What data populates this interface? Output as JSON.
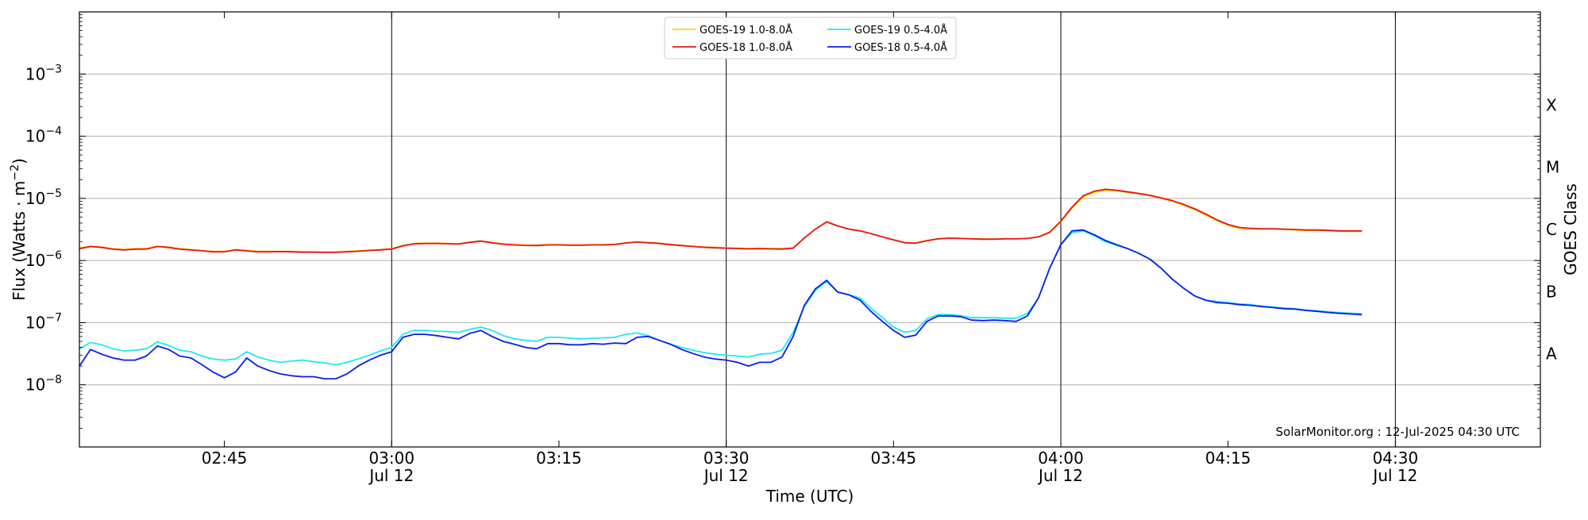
{
  "chart_data": {
    "type": "line",
    "xlabel": "Time (UTC)",
    "ylabel_main": "Flux (Watts · m",
    "ylabel_sup": "−2",
    "ylabel_close": ")",
    "y2label": "GOES Class",
    "y_scale": "log",
    "ylim": [
      1e-09,
      0.01
    ],
    "xlim": [
      "02:32",
      "04:43"
    ],
    "grid": "horizontal at decades",
    "legend_position": "top-center",
    "annotation": "SolarMonitor.org : 12-Jul-2025 04:30 UTC",
    "y_ticks": [
      {
        "value": 1e-08,
        "base": "10",
        "exp": "−8"
      },
      {
        "value": 1e-07,
        "base": "10",
        "exp": "−7"
      },
      {
        "value": 1e-06,
        "base": "10",
        "exp": "−6"
      },
      {
        "value": 1e-05,
        "base": "10",
        "exp": "−5"
      },
      {
        "value": 0.0001,
        "base": "10",
        "exp": "−4"
      },
      {
        "value": 0.001,
        "base": "10",
        "exp": "−3"
      }
    ],
    "x_ticks": [
      {
        "time": "02:45",
        "label": "02:45",
        "sub": ""
      },
      {
        "time": "03:00",
        "label": "03:00",
        "sub": "Jul 12"
      },
      {
        "time": "03:15",
        "label": "03:15",
        "sub": ""
      },
      {
        "time": "03:30",
        "label": "03:30",
        "sub": "Jul 12"
      },
      {
        "time": "03:45",
        "label": "03:45",
        "sub": ""
      },
      {
        "time": "04:00",
        "label": "04:00",
        "sub": "Jul 12"
      },
      {
        "time": "04:15",
        "label": "04:15",
        "sub": ""
      },
      {
        "time": "04:30",
        "label": "04:30",
        "sub": "Jul 12"
      }
    ],
    "vlines": [
      "03:00",
      "03:30",
      "04:00",
      "04:30"
    ],
    "goes_classes": [
      {
        "label": "A",
        "value": 3.16e-08
      },
      {
        "label": "B",
        "value": 3.16e-07
      },
      {
        "label": "C",
        "value": 3.16e-06
      },
      {
        "label": "M",
        "value": 3.16e-05
      },
      {
        "label": "X",
        "value": 0.000316
      }
    ],
    "x": [
      "02:32",
      "02:33",
      "02:34",
      "02:35",
      "02:36",
      "02:37",
      "02:38",
      "02:39",
      "02:40",
      "02:41",
      "02:42",
      "02:43",
      "02:44",
      "02:45",
      "02:46",
      "02:47",
      "02:48",
      "02:49",
      "02:50",
      "02:51",
      "02:52",
      "02:53",
      "02:54",
      "02:55",
      "02:56",
      "02:57",
      "02:58",
      "02:59",
      "03:00",
      "03:01",
      "03:02",
      "03:03",
      "03:04",
      "03:05",
      "03:06",
      "03:07",
      "03:08",
      "03:09",
      "03:10",
      "03:11",
      "03:12",
      "03:13",
      "03:14",
      "03:15",
      "03:16",
      "03:17",
      "03:18",
      "03:19",
      "03:20",
      "03:21",
      "03:22",
      "03:23",
      "03:24",
      "03:25",
      "03:26",
      "03:27",
      "03:28",
      "03:29",
      "03:30",
      "03:31",
      "03:32",
      "03:33",
      "03:34",
      "03:35",
      "03:36",
      "03:37",
      "03:38",
      "03:39",
      "03:40",
      "03:41",
      "03:42",
      "03:43",
      "03:44",
      "03:45",
      "03:46",
      "03:47",
      "03:48",
      "03:49",
      "03:50",
      "03:51",
      "03:52",
      "03:53",
      "03:54",
      "03:55",
      "03:56",
      "03:57",
      "03:58",
      "03:59",
      "04:00",
      "04:01",
      "04:02",
      "04:03",
      "04:04",
      "04:05",
      "04:06",
      "04:07",
      "04:08",
      "04:09",
      "04:10",
      "04:11",
      "04:12",
      "04:13",
      "04:14",
      "04:15",
      "04:16",
      "04:17",
      "04:18",
      "04:19",
      "04:20",
      "04:21",
      "04:22",
      "04:23",
      "04:24",
      "04:25",
      "04:26",
      "04:27"
    ],
    "series": [
      {
        "name": "GOES-19 1.0-8.0Å",
        "color": "#ffd700",
        "values": [
          1.6e-06,
          1.7e-06,
          1.65e-06,
          1.55e-06,
          1.5e-06,
          1.55e-06,
          1.55e-06,
          1.7e-06,
          1.65e-06,
          1.55e-06,
          1.5e-06,
          1.45e-06,
          1.4e-06,
          1.4e-06,
          1.5e-06,
          1.45e-06,
          1.4e-06,
          1.4e-06,
          1.4e-06,
          1.4e-06,
          1.38e-06,
          1.38e-06,
          1.37e-06,
          1.37e-06,
          1.4e-06,
          1.43e-06,
          1.47e-06,
          1.5e-06,
          1.55e-06,
          1.75e-06,
          1.88e-06,
          1.9e-06,
          1.9e-06,
          1.88e-06,
          1.86e-06,
          1.98e-06,
          2.05e-06,
          1.95e-06,
          1.85e-06,
          1.8e-06,
          1.77e-06,
          1.76e-06,
          1.8e-06,
          1.8e-06,
          1.78e-06,
          1.78e-06,
          1.8e-06,
          1.8e-06,
          1.83e-06,
          1.93e-06,
          2e-06,
          1.95e-06,
          1.9e-06,
          1.82e-06,
          1.76e-06,
          1.7e-06,
          1.65e-06,
          1.62e-06,
          1.6e-06,
          1.58e-06,
          1.56e-06,
          1.57e-06,
          1.56e-06,
          1.55e-06,
          1.6e-06,
          2.3e-06,
          3.2e-06,
          4.1e-06,
          3.6e-06,
          3.2e-06,
          3e-06,
          2.7e-06,
          2.4e-06,
          2.15e-06,
          1.95e-06,
          1.92e-06,
          2.1e-06,
          2.25e-06,
          2.3e-06,
          2.28e-06,
          2.25e-06,
          2.22e-06,
          2.22e-06,
          2.25e-06,
          2.25e-06,
          2.28e-06,
          2.4e-06,
          2.8e-06,
          4.2e-06,
          7e-06,
          1.05e-05,
          1.25e-05,
          1.35e-05,
          1.32e-05,
          1.25e-05,
          1.18e-05,
          1.1e-05,
          1e-05,
          9e-06,
          7.8e-06,
          6.6e-06,
          5.4e-06,
          4.4e-06,
          3.7e-06,
          3.3e-06,
          3.2e-06,
          3.2e-06,
          3.2e-06,
          3.15e-06,
          3.1e-06,
          3.05e-06,
          3.05e-06,
          3e-06,
          2.95e-06,
          2.95e-06,
          2.95e-06
        ]
      },
      {
        "name": "GOES-18 1.0-8.0Å",
        "color": "#e8141a",
        "values": [
          1.55e-06,
          1.68e-06,
          1.62e-06,
          1.52e-06,
          1.48e-06,
          1.52e-06,
          1.53e-06,
          1.68e-06,
          1.62e-06,
          1.52e-06,
          1.48e-06,
          1.43e-06,
          1.38e-06,
          1.38e-06,
          1.48e-06,
          1.43e-06,
          1.38e-06,
          1.38e-06,
          1.39e-06,
          1.38e-06,
          1.36e-06,
          1.36e-06,
          1.35e-06,
          1.35e-06,
          1.38e-06,
          1.41e-06,
          1.45e-06,
          1.48e-06,
          1.53e-06,
          1.72e-06,
          1.85e-06,
          1.88e-06,
          1.88e-06,
          1.86e-06,
          1.84e-06,
          1.96e-06,
          2.05e-06,
          1.93e-06,
          1.83e-06,
          1.78e-06,
          1.75e-06,
          1.74e-06,
          1.78e-06,
          1.78e-06,
          1.76e-06,
          1.76e-06,
          1.78e-06,
          1.78e-06,
          1.81e-06,
          1.91e-06,
          1.98e-06,
          1.93e-06,
          1.88e-06,
          1.8e-06,
          1.74e-06,
          1.68e-06,
          1.63e-06,
          1.6e-06,
          1.58e-06,
          1.56e-06,
          1.54e-06,
          1.55e-06,
          1.54e-06,
          1.53e-06,
          1.58e-06,
          2.3e-06,
          3.2e-06,
          4.2e-06,
          3.6e-06,
          3.2e-06,
          3e-06,
          2.7e-06,
          2.4e-06,
          2.15e-06,
          1.93e-06,
          1.9e-06,
          2.08e-06,
          2.23e-06,
          2.28e-06,
          2.26e-06,
          2.23e-06,
          2.2e-06,
          2.2e-06,
          2.23e-06,
          2.23e-06,
          2.26e-06,
          2.4e-06,
          2.85e-06,
          4.3e-06,
          7.2e-06,
          1.1e-05,
          1.3e-05,
          1.4e-05,
          1.35e-05,
          1.27e-05,
          1.2e-05,
          1.12e-05,
          1.02e-05,
          9.2e-06,
          8e-06,
          6.8e-06,
          5.6e-06,
          4.5e-06,
          3.8e-06,
          3.4e-06,
          3.3e-06,
          3.25e-06,
          3.25e-06,
          3.2e-06,
          3.15e-06,
          3.1e-06,
          3.1e-06,
          3.05e-06,
          3e-06,
          3e-06,
          3e-06
        ]
      },
      {
        "name": "GOES-19 0.5-4.0Å",
        "color": "#22e8ee",
        "values": [
          3.8e-08,
          4.8e-08,
          4.4e-08,
          3.8e-08,
          3.5e-08,
          3.6e-08,
          3.8e-08,
          4.9e-08,
          4.3e-08,
          3.6e-08,
          3.4e-08,
          2.9e-08,
          2.6e-08,
          2.5e-08,
          2.6e-08,
          3.4e-08,
          2.8e-08,
          2.5e-08,
          2.3e-08,
          2.4e-08,
          2.5e-08,
          2.35e-08,
          2.25e-08,
          2.1e-08,
          2.3e-08,
          2.6e-08,
          3e-08,
          3.5e-08,
          4e-08,
          6.5e-08,
          7.5e-08,
          7.5e-08,
          7.3e-08,
          7.2e-08,
          7e-08,
          7.8e-08,
          8.5e-08,
          7.5e-08,
          6.2e-08,
          5.5e-08,
          5.2e-08,
          5e-08,
          5.8e-08,
          5.8e-08,
          5.6e-08,
          5.5e-08,
          5.6e-08,
          5.7e-08,
          5.8e-08,
          6.5e-08,
          6.8e-08,
          6.2e-08,
          5.2e-08,
          4.5e-08,
          4e-08,
          3.6e-08,
          3.3e-08,
          3.1e-08,
          3e-08,
          2.9e-08,
          2.8e-08,
          3.1e-08,
          3.2e-08,
          3.6e-08,
          7e-08,
          1.8e-07,
          3.3e-07,
          4.6e-07,
          3.1e-07,
          2.8e-07,
          2.5e-07,
          1.7e-07,
          1.2e-07,
          8.5e-08,
          7e-08,
          7.5e-08,
          1.15e-07,
          1.35e-07,
          1.35e-07,
          1.3e-07,
          1.2e-07,
          1.2e-07,
          1.2e-07,
          1.18e-07,
          1.18e-07,
          1.4e-07,
          2.5e-07,
          7.5e-07,
          1.8e-06,
          2.8e-06,
          3e-06,
          2.5e-06,
          2e-06,
          1.75e-06,
          1.55e-06,
          1.3e-06,
          1.05e-06,
          7.5e-07,
          5e-07,
          3.6e-07,
          2.7e-07,
          2.3e-07,
          2.2e-07,
          2.1e-07,
          2e-07,
          1.95e-07,
          1.85e-07,
          1.78e-07,
          1.72e-07,
          1.68e-07,
          1.6e-07,
          1.55e-07,
          1.5e-07,
          1.45e-07,
          1.42e-07,
          1.4e-07
        ]
      },
      {
        "name": "GOES-18 0.5-4.0Å",
        "color": "#0a1ee8",
        "values": [
          2e-08,
          3.7e-08,
          3.1e-08,
          2.7e-08,
          2.5e-08,
          2.5e-08,
          2.9e-08,
          4.2e-08,
          3.7e-08,
          2.9e-08,
          2.7e-08,
          2.1e-08,
          1.6e-08,
          1.3e-08,
          1.6e-08,
          2.7e-08,
          2e-08,
          1.7e-08,
          1.5e-08,
          1.4e-08,
          1.35e-08,
          1.35e-08,
          1.25e-08,
          1.25e-08,
          1.5e-08,
          2e-08,
          2.5e-08,
          3e-08,
          3.4e-08,
          5.8e-08,
          6.5e-08,
          6.5e-08,
          6.2e-08,
          5.8e-08,
          5.5e-08,
          6.7e-08,
          7.5e-08,
          6e-08,
          5e-08,
          4.5e-08,
          4e-08,
          3.8e-08,
          4.6e-08,
          4.6e-08,
          4.4e-08,
          4.4e-08,
          4.6e-08,
          4.5e-08,
          4.7e-08,
          4.6e-08,
          5.8e-08,
          6e-08,
          5.2e-08,
          4.5e-08,
          3.7e-08,
          3.2e-08,
          2.8e-08,
          2.6e-08,
          2.5e-08,
          2.3e-08,
          2e-08,
          2.3e-08,
          2.3e-08,
          2.8e-08,
          6e-08,
          1.9e-07,
          3.5e-07,
          4.8e-07,
          3.1e-07,
          2.8e-07,
          2.3e-07,
          1.5e-07,
          1.05e-07,
          7.5e-08,
          5.8e-08,
          6.3e-08,
          1.05e-07,
          1.28e-07,
          1.28e-07,
          1.25e-07,
          1.1e-07,
          1.08e-07,
          1.1e-07,
          1.08e-07,
          1.05e-07,
          1.28e-07,
          2.5e-07,
          7.5e-07,
          1.8e-06,
          3e-06,
          3.1e-06,
          2.6e-06,
          2.1e-06,
          1.8e-06,
          1.55e-06,
          1.3e-06,
          1.05e-06,
          7.5e-07,
          5e-07,
          3.6e-07,
          2.7e-07,
          2.3e-07,
          2.1e-07,
          2.05e-07,
          1.95e-07,
          1.9e-07,
          1.82e-07,
          1.75e-07,
          1.68e-07,
          1.65e-07,
          1.57e-07,
          1.52e-07,
          1.46e-07,
          1.41e-07,
          1.38e-07,
          1.34e-07
        ]
      }
    ]
  }
}
